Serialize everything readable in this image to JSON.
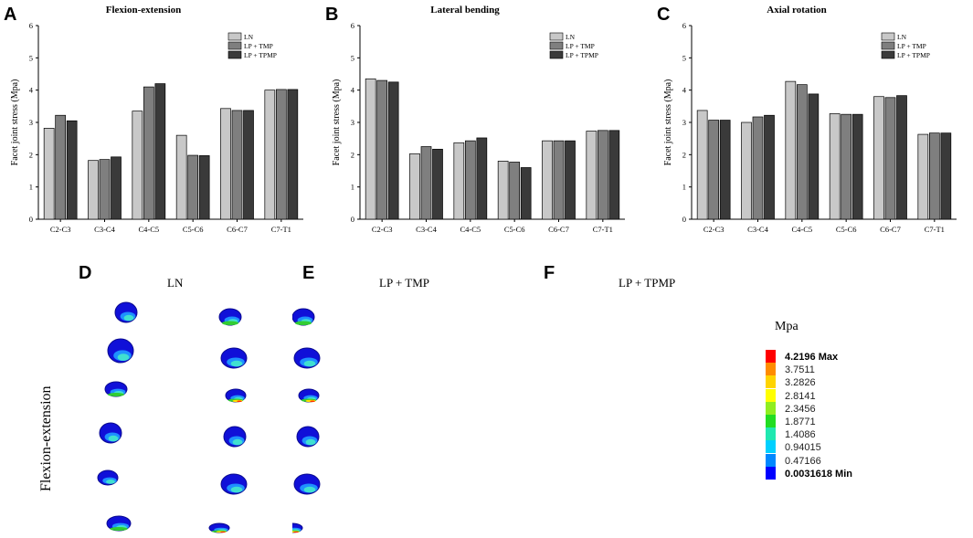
{
  "chart_data": [
    {
      "panel": "A",
      "type": "bar",
      "title": "Flexion-extension",
      "xlabel": "",
      "ylabel": "Facet joint stress (Mpa)",
      "ylim": [
        0,
        6
      ],
      "yticks": [
        0,
        1,
        2,
        3,
        4,
        5,
        6
      ],
      "categories": [
        "C2-C3",
        "C3-C4",
        "C4-C5",
        "C5-C6",
        "C6-C7",
        "C7-T1"
      ],
      "series": [
        {
          "name": "LN",
          "values": [
            2.82,
            1.82,
            3.35,
            2.6,
            3.43,
            4.0
          ]
        },
        {
          "name": "LP + TMP",
          "values": [
            3.22,
            1.85,
            4.1,
            1.98,
            3.37,
            4.02
          ]
        },
        {
          "name": "LP + TPMP",
          "values": [
            3.05,
            1.93,
            4.2,
            1.97,
            3.37,
            4.02
          ]
        }
      ],
      "legend": "top-right"
    },
    {
      "panel": "B",
      "type": "bar",
      "title": "Lateral bending",
      "xlabel": "",
      "ylabel": "Facet joint stress (Mpa)",
      "ylim": [
        0,
        6
      ],
      "yticks": [
        0,
        1,
        2,
        3,
        4,
        5,
        6
      ],
      "categories": [
        "C2-C3",
        "C3-C4",
        "C4-C5",
        "C5-C6",
        "C6-C7",
        "C7-T1"
      ],
      "series": [
        {
          "name": "LN",
          "values": [
            4.35,
            2.03,
            2.37,
            1.8,
            2.43,
            2.73
          ]
        },
        {
          "name": "LP + TMP",
          "values": [
            4.3,
            2.25,
            2.43,
            1.77,
            2.43,
            2.75
          ]
        },
        {
          "name": "LP + TPMP",
          "values": [
            4.25,
            2.17,
            2.52,
            1.6,
            2.43,
            2.75
          ]
        }
      ],
      "legend": "top-right"
    },
    {
      "panel": "C",
      "type": "bar",
      "title": "Axial rotation",
      "xlabel": "",
      "ylabel": "Facet joint stress (Mpa)",
      "ylim": [
        0,
        6
      ],
      "yticks": [
        0,
        1,
        2,
        3,
        4,
        5,
        6
      ],
      "categories": [
        "C2-C3",
        "C3-C4",
        "C4-C5",
        "C5-C6",
        "C6-C7",
        "C7-T1"
      ],
      "series": [
        {
          "name": "LN",
          "values": [
            3.37,
            3.0,
            4.27,
            3.27,
            3.8,
            2.63
          ]
        },
        {
          "name": "LP + TMP",
          "values": [
            3.07,
            3.17,
            4.17,
            3.25,
            3.77,
            2.67
          ]
        },
        {
          "name": "LP + TPMP",
          "values": [
            3.07,
            3.22,
            3.88,
            3.25,
            3.83,
            2.67
          ]
        }
      ],
      "legend": "top-right"
    }
  ],
  "series_colors": [
    "#c8c8c8",
    "#7f7f7f",
    "#3a3a3a"
  ],
  "contour_panels": [
    {
      "letter": "D",
      "title": "LN"
    },
    {
      "letter": "E",
      "title": "LP + TMP"
    },
    {
      "letter": "F",
      "title": "LP + TPMP"
    }
  ],
  "row_label": "Flexion-extension",
  "contour_legend": {
    "unit": "Mpa",
    "levels": [
      {
        "label": "4.2196 Max",
        "color": "#ff0000",
        "bold": true
      },
      {
        "label": "3.7511",
        "color": "#ff8c00",
        "bold": false
      },
      {
        "label": "3.2826",
        "color": "#ffd400",
        "bold": false
      },
      {
        "label": "2.8141",
        "color": "#ffff00",
        "bold": false
      },
      {
        "label": "2.3456",
        "color": "#90ee20",
        "bold": false
      },
      {
        "label": "1.8771",
        "color": "#22dd22",
        "bold": false
      },
      {
        "label": "1.4086",
        "color": "#20e8b0",
        "bold": false
      },
      {
        "label": "0.94015",
        "color": "#00d0ff",
        "bold": false
      },
      {
        "label": "0.47166",
        "color": "#0088ff",
        "bold": false
      },
      {
        "label": "0.0031618 Min",
        "color": "#0000ff",
        "bold": true
      }
    ]
  },
  "model_colors": {
    "base": "#1010d8",
    "dark": "#0a0a90",
    "mid": "#1e90ff",
    "cyan": "#40e0d0",
    "green": "#32cd32",
    "yellow": "#ffe000",
    "red": "#ff3000"
  }
}
